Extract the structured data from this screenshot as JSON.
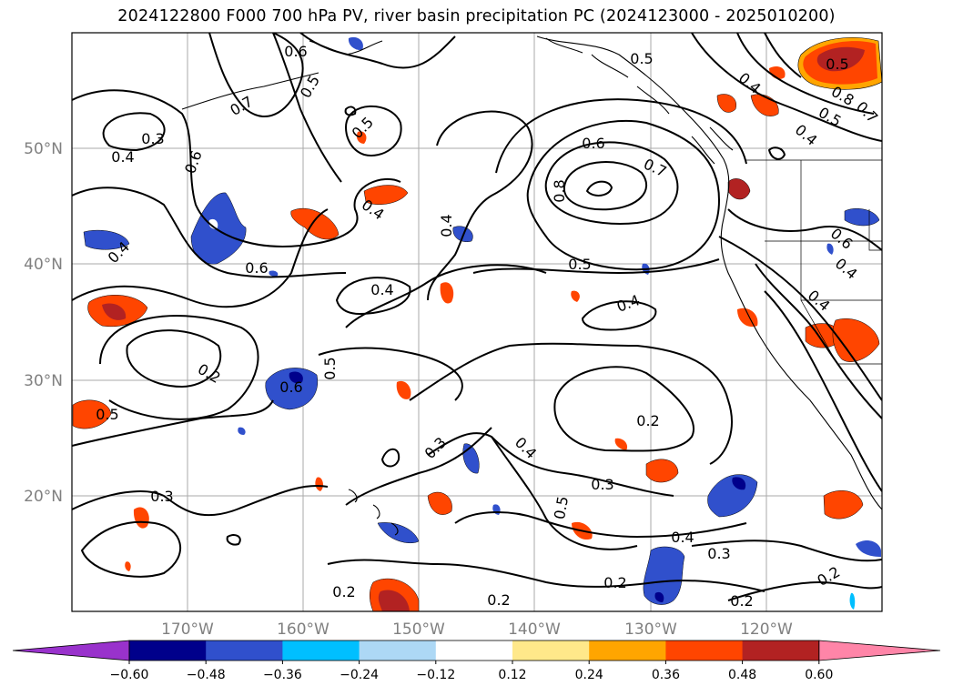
{
  "title": "2024122800 F000 700 hPa PV, river basin precipitation PC (2024123000 - 2025010200)",
  "map": {
    "lat_labels": [
      "50°N",
      "40°N",
      "30°N",
      "20°N"
    ],
    "lon_labels": [
      "170°W",
      "160°W",
      "150°W",
      "140°W",
      "130°W",
      "120°W"
    ],
    "pv_contour_labels": [
      "0.6",
      "0.5",
      "0.7",
      "0.5",
      "0.3",
      "0.4",
      "0.6",
      "0.5",
      "0.4",
      "0.4",
      "0.6",
      "0.7",
      "0.8",
      "0.5",
      "0.4",
      "0.4",
      "0.6",
      "0.4",
      "0.2",
      "0.6",
      "0.5",
      "0.2",
      "0.5",
      "0.3",
      "0.4",
      "0.5",
      "0.3",
      "0.3",
      "0.4",
      "0.3",
      "0.2",
      "0.2",
      "0.2",
      "0.2",
      "0.2",
      "0.4",
      "0.5",
      "0.8",
      "0.7",
      "0.5",
      "0.4",
      "0.6",
      "0.4",
      "0.4"
    ]
  },
  "colorbar": {
    "tick_labels": [
      "−0.60",
      "−0.48",
      "−0.36",
      "−0.24",
      "−0.12",
      "0.12",
      "0.24",
      "0.36",
      "0.48",
      "0.60"
    ],
    "colors": [
      "#9932cc",
      "#00008b",
      "#3050cc",
      "#00bfff",
      "#add8f5",
      "#ffffff",
      "#ffe88a",
      "#ffa500",
      "#ff4500",
      "#b22222",
      "#ff85a8"
    ]
  },
  "colors": {
    "contour": "#000000",
    "grid": "#aaaaaa",
    "coast": "#000000",
    "axis_label": "#808080"
  }
}
